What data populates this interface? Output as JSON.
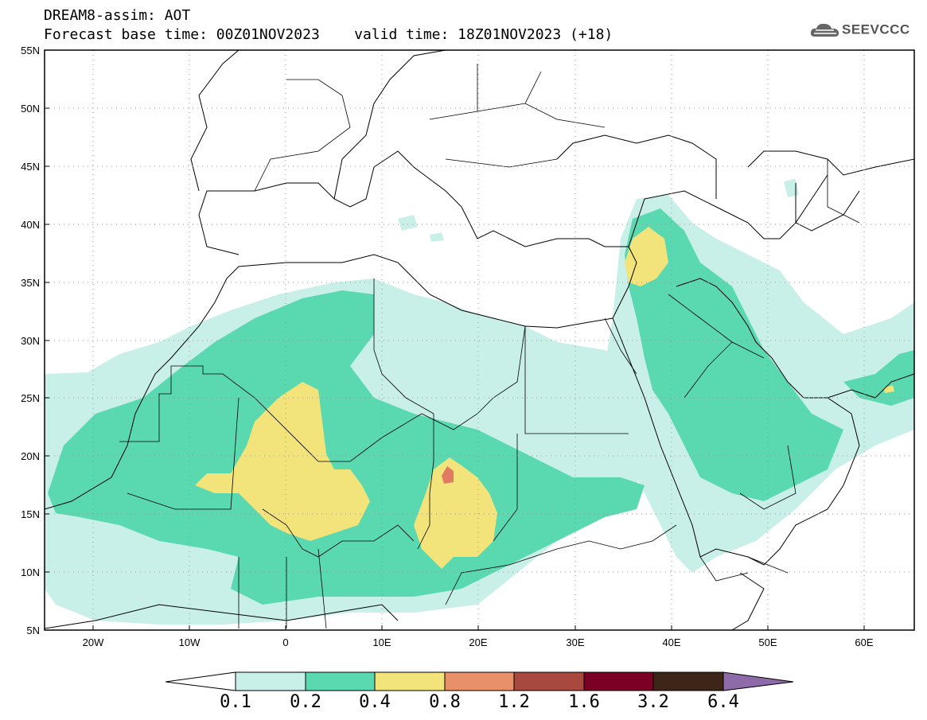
{
  "header": {
    "title_line1": "DREAM8-assim: AOT",
    "title_line2": "Forecast base time: 00Z01NOV2023    valid time: 18Z01NOV2023 (+18)",
    "logo_text": "SEEVCCC"
  },
  "map": {
    "lon_range": [
      -25,
      65
    ],
    "lat_range": [
      5,
      55
    ],
    "lat_ticks": [
      "55N",
      "50N",
      "45N",
      "40N",
      "35N",
      "30N",
      "25N",
      "20N",
      "15N",
      "10N",
      "5N"
    ],
    "lon_ticks": [
      "20W",
      "10W",
      "0",
      "10E",
      "20E",
      "30E",
      "40E",
      "50E",
      "60E"
    ],
    "gridlines": "dotted"
  },
  "legend": {
    "labels": [
      "0.1",
      "0.2",
      "0.4",
      "0.8",
      "1.2",
      "1.6",
      "3.2",
      "6.4"
    ],
    "colors": [
      "#ffffff",
      "#c9f0e8",
      "#5ad8b0",
      "#f2e47a",
      "#e8906a",
      "#a8483e",
      "#7a0025",
      "#3d2518",
      "#8f6aa8"
    ]
  }
}
